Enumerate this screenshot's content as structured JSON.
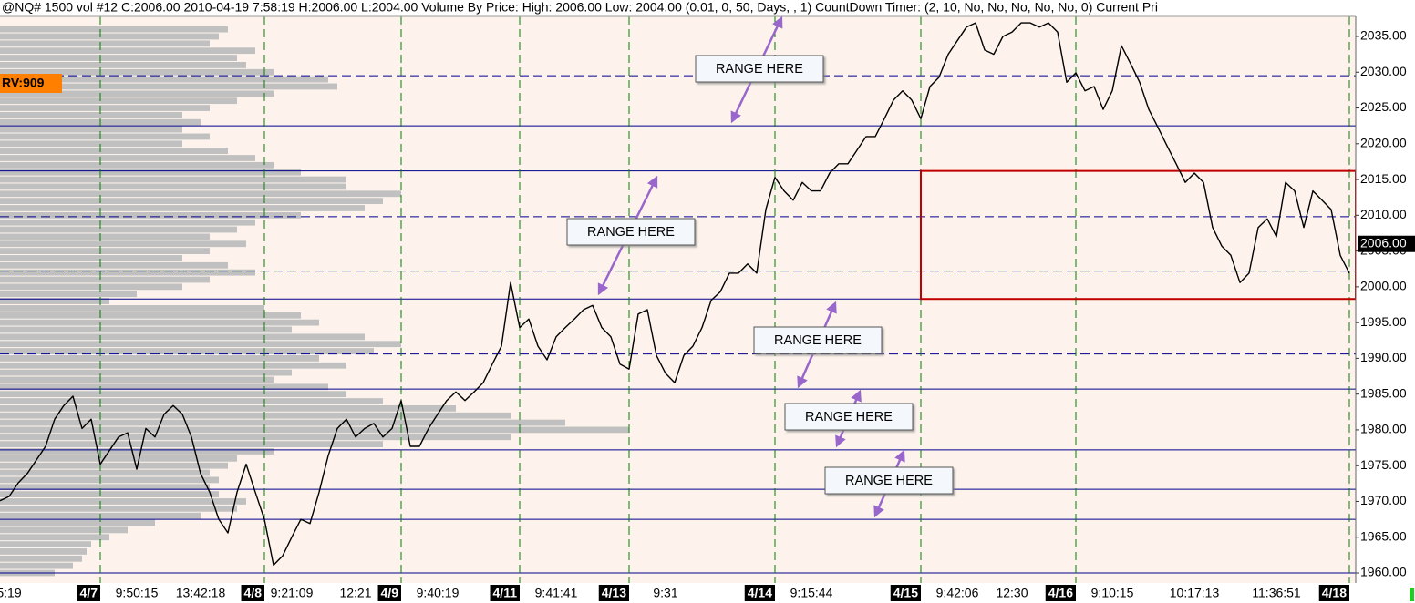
{
  "chart_data": {
    "type": "line",
    "title": "@NQ#  1500 vol  #12  C:2006.00  2010-04-19  7:58:19  H:2006.00  L:2004.00  Volume By Price:  High: 2006.00   Low: 2004.00   (0.01, 0, 50, Days, , 1)   CountDown Timer:   (2, 10, No, No, No, No, No, 0)   Current Pri",
    "rv_label": "RV:909",
    "last_price": {
      "value": 2006,
      "label": "2006.00"
    },
    "color": "#000000",
    "categories": [
      null,
      "5:19",
      null,
      null,
      null,
      null,
      null,
      null,
      null,
      null,
      null,
      "4/7",
      null,
      null,
      null,
      "9:50:15",
      null,
      null,
      null,
      null,
      null,
      null,
      "13:42:18",
      null,
      null,
      null,
      null,
      null,
      null,
      "4/8",
      null,
      null,
      "9:21:09",
      null,
      null,
      null,
      null,
      null,
      null,
      "12:21",
      null,
      null,
      null,
      null,
      "4/9",
      null,
      null,
      null,
      "9:40:19",
      null,
      null,
      null,
      null,
      null,
      null,
      null,
      null,
      "4/11",
      null,
      null,
      null,
      "9:41:41",
      null,
      null,
      null,
      null,
      null,
      null,
      null,
      "4/13",
      null,
      null,
      null,
      "9:31",
      null,
      null,
      null,
      null,
      null,
      null,
      null,
      null,
      null,
      null,
      null,
      "4/14",
      null,
      null,
      null,
      "9:15:44",
      null,
      null,
      null,
      null,
      null,
      null,
      null,
      null,
      null,
      null,
      null,
      "4/15",
      null,
      null,
      null,
      "9:42:06",
      null,
      null,
      null,
      null,
      null,
      "12:30",
      null,
      null,
      null,
      null,
      null,
      null,
      "4/16",
      null,
      null,
      null,
      "9:10:15",
      null,
      null,
      null,
      null,
      null,
      null,
      null,
      null,
      "10:17:13",
      null,
      null,
      null,
      null,
      null,
      null,
      null,
      null,
      "11:36:51",
      null,
      null,
      null,
      null,
      null,
      null,
      null,
      "4/18"
    ],
    "values": [
      1970.1,
      1970.7,
      1972.6,
      1973.9,
      1975.8,
      1977.7,
      1981.5,
      1983.4,
      1984.7,
      1980.2,
      1981.5,
      1975.2,
      1977.1,
      1979.0,
      1979.6,
      1974.5,
      1980.2,
      1979.0,
      1982.2,
      1983.4,
      1982.2,
      1979.0,
      1973.9,
      1971.3,
      1967.5,
      1965.6,
      1971.3,
      1975.2,
      1971.3,
      1967.5,
      1961.1,
      1962.4,
      1965.0,
      1967.5,
      1966.9,
      1971.3,
      1976.4,
      1980.2,
      1981.5,
      1979.0,
      1980.2,
      1980.9,
      1979.0,
      1980.2,
      1984.1,
      1977.7,
      1977.7,
      1980.2,
      1982.2,
      1984.1,
      1985.3,
      1984.1,
      1985.3,
      1986.6,
      1989.2,
      1991.7,
      2000.6,
      1994.3,
      1995.5,
      1991.7,
      1989.8,
      1993.0,
      1994.3,
      1995.5,
      1996.8,
      1997.4,
      1994.3,
      1993.0,
      1989.2,
      1988.5,
      1996.2,
      1996.8,
      1990.4,
      1987.9,
      1986.6,
      1990.4,
      1991.7,
      1994.3,
      1998.1,
      1999.3,
      2001.9,
      2001.9,
      2003.2,
      2001.9,
      2010.8,
      2015.3,
      2013.4,
      2012.1,
      2014.6,
      2013.4,
      2013.4,
      2015.9,
      2017.2,
      2017.2,
      2019.1,
      2021.0,
      2021.0,
      2023.5,
      2026.1,
      2027.4,
      2026.1,
      2023.5,
      2028.0,
      2029.3,
      2032.5,
      2034.4,
      2036.3,
      2036.9,
      2033.1,
      2032.5,
      2035.0,
      2035.6,
      2036.9,
      2036.9,
      2036.3,
      2036.9,
      2035.6,
      2028.6,
      2029.9,
      2027.4,
      2028.0,
      2024.8,
      2027.4,
      2033.7,
      2031.2,
      2028.6,
      2024.8,
      2022.3,
      2019.7,
      2017.2,
      2014.6,
      2015.9,
      2014.6,
      2008.3,
      2005.7,
      2004.4,
      2000.6,
      2001.9,
      2008.3,
      2009.5,
      2007.0,
      2014.6,
      2013.4,
      2008.3,
      2013.4,
      2012.1,
      2010.8,
      2004.4,
      2001.9
    ],
    "ylim": [
      1958.6,
      2037.8
    ],
    "yticks": [
      {
        "value": 1960,
        "label": "1960.00"
      },
      {
        "value": 1965,
        "label": "1965.00"
      },
      {
        "value": 1970,
        "label": "1970.00"
      },
      {
        "value": 1975,
        "label": "1975.00"
      },
      {
        "value": 1980,
        "label": "1980.00"
      },
      {
        "value": 1985,
        "label": "1985.00"
      },
      {
        "value": 1990,
        "label": "1990.00"
      },
      {
        "value": 1995,
        "label": "1995.00"
      },
      {
        "value": 2000,
        "label": "2000.00"
      },
      {
        "value": 2005,
        "label": "2005.00"
      },
      {
        "value": 2010,
        "label": "2010.00"
      },
      {
        "value": 2015,
        "label": "2015.00"
      },
      {
        "value": 2020,
        "label": "2020.00"
      },
      {
        "value": 2025,
        "label": "2025.00"
      },
      {
        "value": 2030,
        "label": "2030.00"
      },
      {
        "value": 2035,
        "label": "2035.00"
      }
    ],
    "level_color": "#00008b",
    "solid_levels": [
      2022.5,
      2016.2,
      1998.3,
      1985.7,
      1977.2,
      1971.7,
      1967.5,
      1960.0
    ],
    "dashed_levels": [
      2029.5,
      2009.8,
      2002.2,
      1990.6
    ],
    "session_line_color": "#008000",
    "highlight_box": {
      "x_from": 101,
      "ylim": [
        1998.3,
        2016.2
      ],
      "color": "#c00000"
    },
    "volume_profile": {
      "color": "#c0c0c0",
      "prices": [
        1960,
        1961,
        1962,
        1963,
        1964,
        1965,
        1966,
        1967,
        1968,
        1969,
        1970,
        1971,
        1972,
        1973,
        1974,
        1975,
        1976,
        1977,
        1978,
        1979,
        1980,
        1981,
        1982,
        1983,
        1984,
        1985,
        1986,
        1987,
        1988,
        1989,
        1990,
        1991,
        1992,
        1993,
        1994,
        1995,
        1996,
        1997,
        1998,
        1999,
        2000,
        2001,
        2002,
        2003,
        2004,
        2005,
        2006,
        2007,
        2008,
        2009,
        2010,
        2011,
        2012,
        2013,
        2014,
        2015,
        2016,
        2017,
        2018,
        2019,
        2020,
        2021,
        2022,
        2023,
        2024,
        2025,
        2026,
        2027,
        2028,
        2029,
        2030,
        2031,
        2032,
        2033,
        2034,
        2035,
        2036
      ],
      "values": [
        60,
        80,
        90,
        95,
        100,
        120,
        140,
        170,
        220,
        260,
        270,
        240,
        230,
        240,
        230,
        250,
        260,
        300,
        420,
        560,
        690,
        620,
        560,
        500,
        420,
        380,
        360,
        300,
        320,
        380,
        350,
        410,
        440,
        400,
        320,
        350,
        330,
        290,
        120,
        150,
        200,
        230,
        280,
        250,
        200,
        230,
        270,
        230,
        260,
        280,
        330,
        400,
        420,
        440,
        380,
        380,
        330,
        300,
        280,
        250,
        200,
        230,
        200,
        220,
        200,
        230,
        260,
        300,
        370,
        360,
        300,
        270,
        260,
        280,
        230,
        240,
        250
      ]
    },
    "annotations": [
      "RANGE HERE",
      "RANGE HERE",
      "RANGE HERE",
      "RANGE HERE",
      "RANGE HERE"
    ]
  }
}
